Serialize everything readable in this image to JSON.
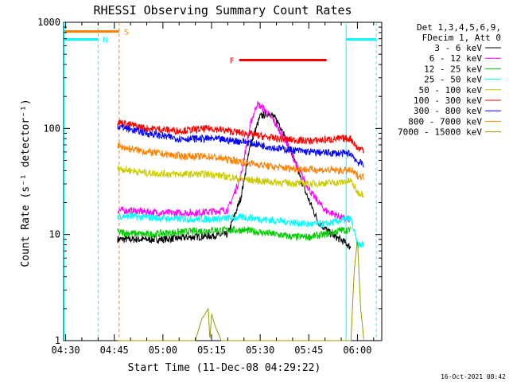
{
  "chart_data": {
    "type": "line",
    "title": "RHESSI Observing Summary Count Rates",
    "xlabel": "Start Time (11-Dec-08 04:29:22)",
    "ylabel": "Count Rate (s⁻¹ detector⁻¹)",
    "x_units": "UT time",
    "xlim": [
      "04:29:22",
      "06:07:30"
    ],
    "ylim": [
      1,
      1000
    ],
    "y_scale": "log",
    "x_ticks": [
      "04:30",
      "04:45",
      "05:00",
      "05:15",
      "05:30",
      "05:45",
      "06:00"
    ],
    "y_ticks": [
      "1",
      "10",
      "100",
      "1000"
    ],
    "legend_header": [
      "Det 1,3,4,5,6,9,",
      "FDecim 1, Att 0"
    ],
    "legend_position": "right",
    "series": [
      {
        "name": "3 - 6 keV",
        "color": "#000000",
        "x": [
          "04:46",
          "05:00",
          "05:10",
          "05:20",
          "05:24",
          "05:27",
          "05:30",
          "05:33",
          "05:36",
          "05:40",
          "05:44",
          "05:48",
          "05:52",
          "05:56",
          "05:58"
        ],
        "y": [
          9,
          9,
          9.5,
          10,
          22,
          70,
          130,
          140,
          110,
          55,
          25,
          13,
          10,
          8.5,
          7.5
        ]
      },
      {
        "name": "6 - 12 keV",
        "color": "#ff00ff",
        "x": [
          "04:46",
          "05:00",
          "05:10",
          "05:20",
          "05:24",
          "05:27",
          "05:29",
          "05:31",
          "05:34",
          "05:38",
          "05:42",
          "05:46",
          "05:50",
          "05:54",
          "05:56",
          "05:58"
        ],
        "y": [
          17,
          16,
          16,
          17,
          35,
          110,
          170,
          155,
          120,
          75,
          40,
          24,
          17,
          15,
          14,
          14
        ]
      },
      {
        "name": "12 - 25 keV",
        "color": "#00cc00",
        "x": [
          "04:46",
          "04:55",
          "05:05",
          "05:15",
          "05:25",
          "05:30",
          "05:35",
          "05:40",
          "05:45",
          "05:50",
          "05:55",
          "05:58"
        ],
        "y": [
          10.5,
          10,
          10.5,
          11,
          11,
          10.5,
          10,
          9.5,
          9.5,
          10,
          11,
          11
        ]
      },
      {
        "name": "25 - 50 keV",
        "color": "#00ffff",
        "x": [
          "04:46",
          "04:55",
          "05:05",
          "05:15",
          "05:25",
          "05:30",
          "05:35",
          "05:40",
          "05:45",
          "05:50",
          "05:55",
          "05:58",
          "06:00",
          "06:02"
        ],
        "y": [
          15,
          14.5,
          14,
          14,
          14.5,
          14,
          13.5,
          13,
          12.5,
          12.5,
          13.5,
          14,
          8,
          8
        ]
      },
      {
        "name": "50 - 100 keV",
        "color": "#cccc00",
        "x": [
          "04:46",
          "04:55",
          "05:05",
          "05:15",
          "05:25",
          "05:35",
          "05:45",
          "05:55",
          "05:58",
          "06:00",
          "06:02"
        ],
        "y": [
          42,
          38,
          37,
          37,
          33,
          31,
          30,
          31,
          32,
          25,
          24
        ]
      },
      {
        "name": "100 - 300 keV",
        "color": "#ff0000",
        "x": [
          "04:46",
          "04:55",
          "05:05",
          "05:15",
          "05:25",
          "05:35",
          "05:45",
          "05:55",
          "05:58",
          "06:00",
          "06:02"
        ],
        "y": [
          115,
          100,
          95,
          100,
          90,
          80,
          76,
          80,
          80,
          65,
          63
        ]
      },
      {
        "name": "300 - 800 keV",
        "color": "#0000ff",
        "x": [
          "04:46",
          "04:55",
          "05:05",
          "05:15",
          "05:25",
          "05:35",
          "05:45",
          "05:55",
          "05:58",
          "06:00",
          "06:02"
        ],
        "y": [
          105,
          90,
          80,
          80,
          75,
          65,
          60,
          58,
          58,
          48,
          46
        ]
      },
      {
        "name": "800 - 7000 keV",
        "color": "#ff8000",
        "x": [
          "04:46",
          "04:55",
          "05:05",
          "05:15",
          "05:25",
          "05:35",
          "05:45",
          "05:55",
          "05:58",
          "06:00",
          "06:02"
        ],
        "y": [
          68,
          60,
          55,
          54,
          48,
          43,
          41,
          40,
          40,
          36,
          35
        ]
      },
      {
        "name": "7000 - 15000 keV",
        "color": "#999900",
        "x": [
          "04:46",
          "05:10",
          "05:12",
          "05:14",
          "05:14.5",
          "05:15",
          "05:16",
          "05:18",
          "05:58",
          "05:59",
          "06:00",
          "06:01",
          "06:02"
        ],
        "y": [
          1,
          1,
          1.6,
          2,
          1,
          1.8,
          1.4,
          1,
          1,
          4.5,
          9,
          2,
          1
        ]
      }
    ],
    "vertical_markers": [
      {
        "time": "04:29:30",
        "color": "#00ffff",
        "style": "solid"
      },
      {
        "time": "04:40:00",
        "color": "#00ffff",
        "style": "dashed"
      },
      {
        "time": "04:46:30",
        "color": "#ff8000",
        "style": "dashed"
      },
      {
        "time": "05:56:30",
        "color": "#00ffff",
        "style": "solid"
      },
      {
        "time": "06:05:50",
        "color": "#00ffff",
        "style": "dashed"
      }
    ],
    "flag_bars": [
      {
        "label": "S",
        "color": "#ff8000",
        "start": "04:29:22",
        "end": "04:46:30",
        "y": 820
      },
      {
        "label": "N",
        "color": "#00ffff",
        "start": "04:29:22",
        "end": "04:40:00",
        "y": 690
      },
      {
        "label": "F",
        "color": "#ff0000",
        "start": "05:23:30",
        "end": "05:50:30",
        "y": 440
      },
      {
        "label": "",
        "color": "#00ffff",
        "start": "05:56:30",
        "end": "06:05:50",
        "y": 690
      }
    ]
  },
  "footer_timestamp": "16-Oct-2021 08:42"
}
